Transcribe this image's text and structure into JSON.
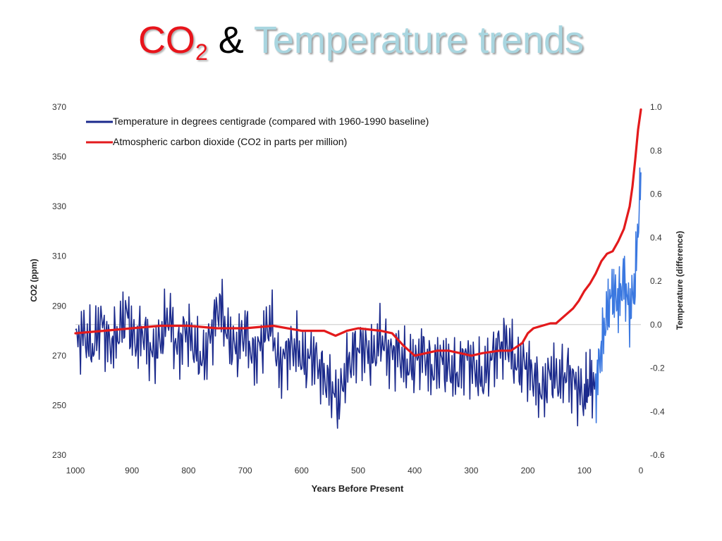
{
  "title": {
    "co2": "CO",
    "co2_sub": "2",
    "amp": "&",
    "temp": "Temperature trends"
  },
  "colors": {
    "title_co2": "#e8141b",
    "title_temp": "#a9d6e0",
    "temperature_line": "#1b2a8c",
    "temperature_recent": "#3b78e0",
    "co2_line": "#e31a1c",
    "zero_line": "#c8c8c8"
  },
  "chart_data": {
    "type": "line",
    "xlabel": "Years Before Present",
    "ylabel_left": "CO2 (ppm)",
    "ylabel_right": "Temperature (difference)",
    "xlim": [
      1000,
      0
    ],
    "ylim_left": [
      230,
      370
    ],
    "ylim_right": [
      -0.6,
      1.0
    ],
    "x_ticks": [
      1000,
      900,
      800,
      700,
      600,
      500,
      400,
      300,
      200,
      100,
      0
    ],
    "y_ticks_left": [
      230,
      250,
      270,
      290,
      310,
      330,
      350,
      370
    ],
    "y_ticks_right": [
      "-0.6",
      "-0.4",
      "-0.2",
      "0.0",
      "0.2",
      "0.4",
      "0.6",
      "0.8",
      "1.0"
    ],
    "grid": false,
    "legend_position": "top-left",
    "series": [
      {
        "name": "Temperature in degrees centigrade (compared with 1960-1990 baseline)",
        "axis": "right",
        "x": [
          1000,
          985,
          970,
          955,
          940,
          925,
          910,
          895,
          880,
          865,
          850,
          835,
          820,
          805,
          790,
          775,
          760,
          745,
          730,
          715,
          700,
          685,
          670,
          655,
          640,
          625,
          610,
          595,
          580,
          565,
          550,
          535,
          520,
          505,
          490,
          475,
          460,
          445,
          430,
          415,
          400,
          385,
          370,
          355,
          340,
          325,
          310,
          295,
          280,
          265,
          250,
          235,
          220,
          205,
          190,
          175,
          160,
          145,
          130,
          115,
          100,
          90,
          80,
          70,
          60,
          50,
          40,
          30,
          20,
          10,
          0
        ],
        "values": [
          -0.08,
          -0.04,
          -0.12,
          0.02,
          -0.1,
          -0.05,
          0.06,
          -0.09,
          -0.03,
          -0.14,
          -0.08,
          0.05,
          -0.12,
          -0.02,
          -0.1,
          -0.18,
          -0.04,
          0.1,
          -0.06,
          -0.12,
          -0.02,
          -0.16,
          -0.08,
          0.02,
          -0.2,
          -0.12,
          -0.1,
          -0.18,
          -0.14,
          -0.22,
          -0.28,
          -0.36,
          -0.2,
          -0.12,
          -0.1,
          -0.16,
          -0.06,
          -0.14,
          -0.12,
          -0.2,
          -0.18,
          -0.12,
          -0.22,
          -0.16,
          -0.2,
          -0.24,
          -0.14,
          -0.2,
          -0.26,
          -0.16,
          -0.1,
          -0.08,
          -0.2,
          -0.18,
          -0.24,
          -0.32,
          -0.22,
          -0.26,
          -0.22,
          -0.28,
          -0.34,
          -0.26,
          -0.3,
          -0.1,
          0.05,
          0.15,
          0.1,
          0.22,
          0.05,
          0.2,
          0.7
        ]
      },
      {
        "name": "Atmospheric carbon dioxide (CO2 in parts per million)",
        "axis": "left",
        "x": [
          1000,
          950,
          900,
          850,
          800,
          750,
          700,
          650,
          600,
          560,
          540,
          520,
          500,
          460,
          440,
          420,
          400,
          380,
          360,
          340,
          320,
          300,
          280,
          250,
          230,
          210,
          200,
          190,
          175,
          160,
          150,
          140,
          130,
          120,
          110,
          100,
          90,
          80,
          70,
          60,
          50,
          40,
          30,
          20,
          15,
          10,
          5,
          0
        ],
        "values": [
          279,
          280,
          281,
          282,
          282,
          281,
          281,
          282,
          280,
          280,
          278,
          280,
          281,
          280,
          279,
          274,
          270,
          271,
          272,
          272,
          271,
          270,
          271,
          272,
          272,
          275,
          279,
          281,
          282,
          283,
          283,
          285,
          287,
          289,
          292,
          296,
          299,
          303,
          308,
          311,
          312,
          316,
          321,
          330,
          338,
          349,
          361,
          369
        ]
      }
    ]
  }
}
